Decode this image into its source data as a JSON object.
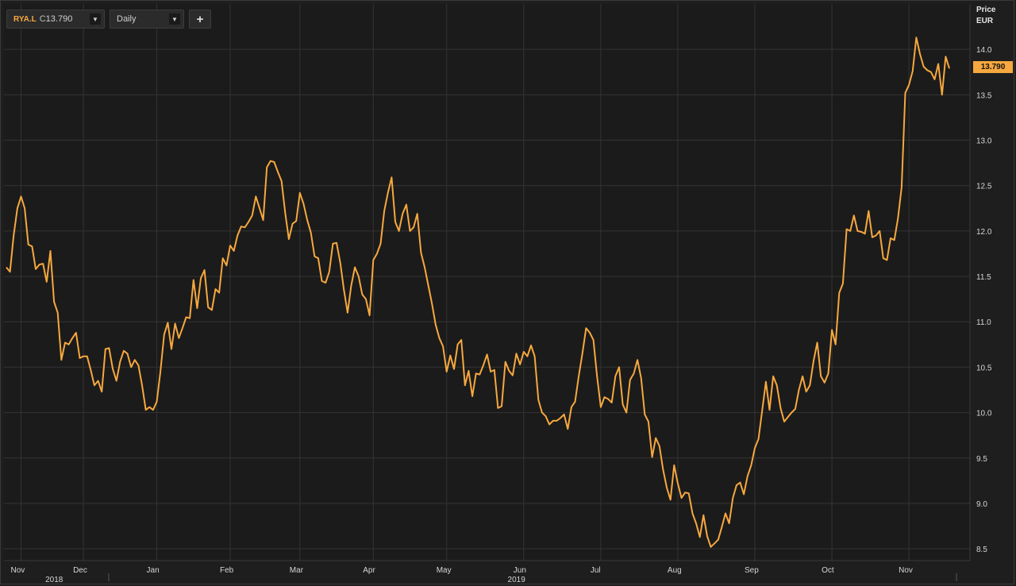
{
  "toolbar": {
    "symbol": "RYA.L",
    "close_prefix": "C",
    "close_value": "13.790",
    "interval": "Daily",
    "add_label": "+"
  },
  "price_header": {
    "line1": "Price",
    "line2": "EUR"
  },
  "last_price_tag": "13.790",
  "colors": {
    "series": "#f7a83e",
    "background": "#1b1b1b",
    "grid": "#343434"
  },
  "chart_data": {
    "type": "line",
    "title": "",
    "xlabel": "",
    "ylabel": "Price EUR",
    "ylim": [
      8.37,
      14.5
    ],
    "yticks": [
      8.5,
      9.0,
      9.5,
      10.0,
      10.5,
      11.0,
      11.5,
      12.0,
      12.5,
      13.0,
      13.5,
      14.0
    ],
    "ytick_labels": [
      "8.5",
      "9.0",
      "9.5",
      "10.0",
      "10.5",
      "11.0",
      "11.5",
      "12.0",
      "12.5",
      "13.0",
      "13.5",
      "14.0"
    ],
    "xticks": [
      {
        "label": "Nov",
        "index": 4
      },
      {
        "label": "Dec",
        "index": 21
      },
      {
        "label": "Jan",
        "index": 41
      },
      {
        "label": "Feb",
        "index": 61
      },
      {
        "label": "Mar",
        "index": 80
      },
      {
        "label": "Apr",
        "index": 100
      },
      {
        "label": "May",
        "index": 120
      },
      {
        "label": "Jun",
        "index": 141
      },
      {
        "label": "Jul",
        "index": 162
      },
      {
        "label": "Aug",
        "index": 183
      },
      {
        "label": "Sep",
        "index": 204
      },
      {
        "label": "Oct",
        "index": 225
      },
      {
        "label": "Nov",
        "index": 246
      }
    ],
    "year_labels": [
      {
        "label": "2018",
        "index": 13
      },
      {
        "label": "2019",
        "index": 139
      }
    ],
    "grid": true,
    "series": [
      {
        "values": [
          11.6,
          11.55,
          11.95,
          12.25,
          12.38,
          12.25,
          11.85,
          11.83,
          11.58,
          11.63,
          11.64,
          11.44,
          11.78,
          11.22,
          11.1,
          10.58,
          10.77,
          10.75,
          10.82,
          10.88,
          10.6,
          10.62,
          10.62,
          10.47,
          10.3,
          10.35,
          10.23,
          10.7,
          10.71,
          10.48,
          10.35,
          10.56,
          10.68,
          10.65,
          10.5,
          10.58,
          10.52,
          10.3,
          10.03,
          10.06,
          10.03,
          10.12,
          10.45,
          10.86,
          10.99,
          10.7,
          10.98,
          10.82,
          10.93,
          11.05,
          11.04,
          11.46,
          11.15,
          11.48,
          11.57,
          11.16,
          11.13,
          11.36,
          11.32,
          11.7,
          11.62,
          11.84,
          11.78,
          11.95,
          12.05,
          12.04,
          12.1,
          12.17,
          12.38,
          12.25,
          12.12,
          12.7,
          12.77,
          12.76,
          12.65,
          12.55,
          12.2,
          11.91,
          12.08,
          12.11,
          12.42,
          12.3,
          12.12,
          11.98,
          11.72,
          11.7,
          11.45,
          11.43,
          11.55,
          11.86,
          11.87,
          11.65,
          11.35,
          11.1,
          11.4,
          11.6,
          11.5,
          11.3,
          11.25,
          11.07,
          11.68,
          11.75,
          11.86,
          12.22,
          12.42,
          12.59,
          12.1,
          12.0,
          12.19,
          12.29,
          12.0,
          12.04,
          12.19,
          11.76,
          11.6,
          11.4,
          11.2,
          10.97,
          10.82,
          10.73,
          10.45,
          10.63,
          10.48,
          10.75,
          10.8,
          10.3,
          10.46,
          10.18,
          10.43,
          10.42,
          10.52,
          10.64,
          10.45,
          10.47,
          10.05,
          10.07,
          10.56,
          10.46,
          10.41,
          10.65,
          10.53,
          10.67,
          10.62,
          10.74,
          10.62,
          10.14,
          10.0,
          9.96,
          9.87,
          9.91,
          9.91,
          9.94,
          9.98,
          9.82,
          10.06,
          10.12,
          10.4,
          10.65,
          10.93,
          10.88,
          10.8,
          10.4,
          10.06,
          10.17,
          10.15,
          10.11,
          10.4,
          10.5,
          10.09,
          10.0,
          10.36,
          10.43,
          10.58,
          10.38,
          9.98,
          9.9,
          9.51,
          9.72,
          9.63,
          9.37,
          9.17,
          9.04,
          9.42,
          9.22,
          9.06,
          9.12,
          9.11,
          8.89,
          8.78,
          8.63,
          8.87,
          8.64,
          8.52,
          8.56,
          8.6,
          8.74,
          8.89,
          8.78,
          9.06,
          9.2,
          9.23,
          9.1,
          9.3,
          9.42,
          9.61,
          9.71,
          10.02,
          10.34,
          10.03,
          10.4,
          10.3,
          10.05,
          9.9,
          9.95,
          10.0,
          10.04,
          10.25,
          10.4,
          10.23,
          10.3,
          10.57,
          10.77,
          10.4,
          10.33,
          10.43,
          10.91,
          10.75,
          11.32,
          11.42,
          12.02,
          12.0,
          12.17,
          12.0,
          11.99,
          11.97,
          12.22,
          11.93,
          11.95,
          12.0,
          11.7,
          11.68,
          11.92,
          11.9,
          12.14,
          12.48,
          13.52,
          13.61,
          13.76,
          14.13,
          13.95,
          13.81,
          13.77,
          13.75,
          13.67,
          13.84,
          13.5,
          13.92,
          13.79
        ]
      }
    ]
  }
}
